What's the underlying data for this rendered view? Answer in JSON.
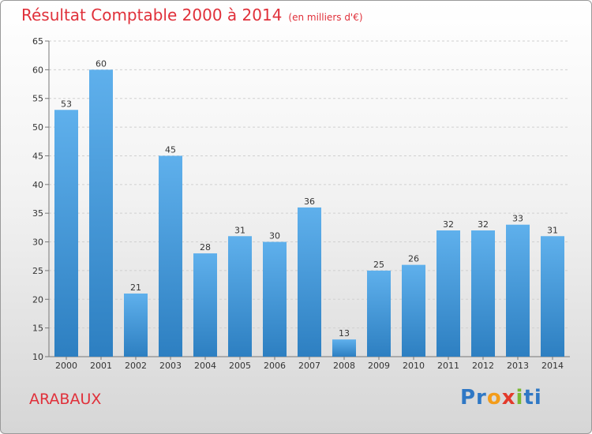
{
  "chart_data": {
    "type": "bar",
    "title": "Résultat Comptable 2000 à 2014",
    "subtitle": "(en milliers d'€)",
    "categories": [
      "2000",
      "2001",
      "2002",
      "2003",
      "2004",
      "2005",
      "2006",
      "2007",
      "2008",
      "2009",
      "2010",
      "2011",
      "2012",
      "2013",
      "2014"
    ],
    "values": [
      53,
      60,
      21,
      45,
      28,
      31,
      30,
      36,
      13,
      25,
      26,
      32,
      32,
      33,
      31
    ],
    "value_labels": [
      "53",
      "60",
      "21",
      "45",
      "28",
      "31",
      "30",
      "36",
      "13",
      "25",
      "26",
      "32",
      "32",
      "33",
      "31"
    ],
    "xlabel": "",
    "ylabel": "",
    "ylim": [
      10,
      65
    ],
    "yticks": [
      10,
      15,
      20,
      25,
      30,
      35,
      40,
      45,
      50,
      55,
      60,
      65
    ],
    "ytick_labels": [
      "10",
      "15",
      "20",
      "25",
      "30",
      "35",
      "40",
      "45",
      "50",
      "55",
      "60",
      "65"
    ],
    "grid": true,
    "bar_color_top": "#5fb0ec",
    "bar_color_bottom": "#2d7fc1"
  },
  "footer": {
    "place_name": "ARABAUX",
    "logo": {
      "parts": [
        "Pr",
        "o",
        "x",
        "i",
        "ti"
      ],
      "colors": [
        "#2f78c5",
        "#f39c1a",
        "#e33a2b",
        "#7ab832",
        "#2f78c5"
      ]
    }
  }
}
